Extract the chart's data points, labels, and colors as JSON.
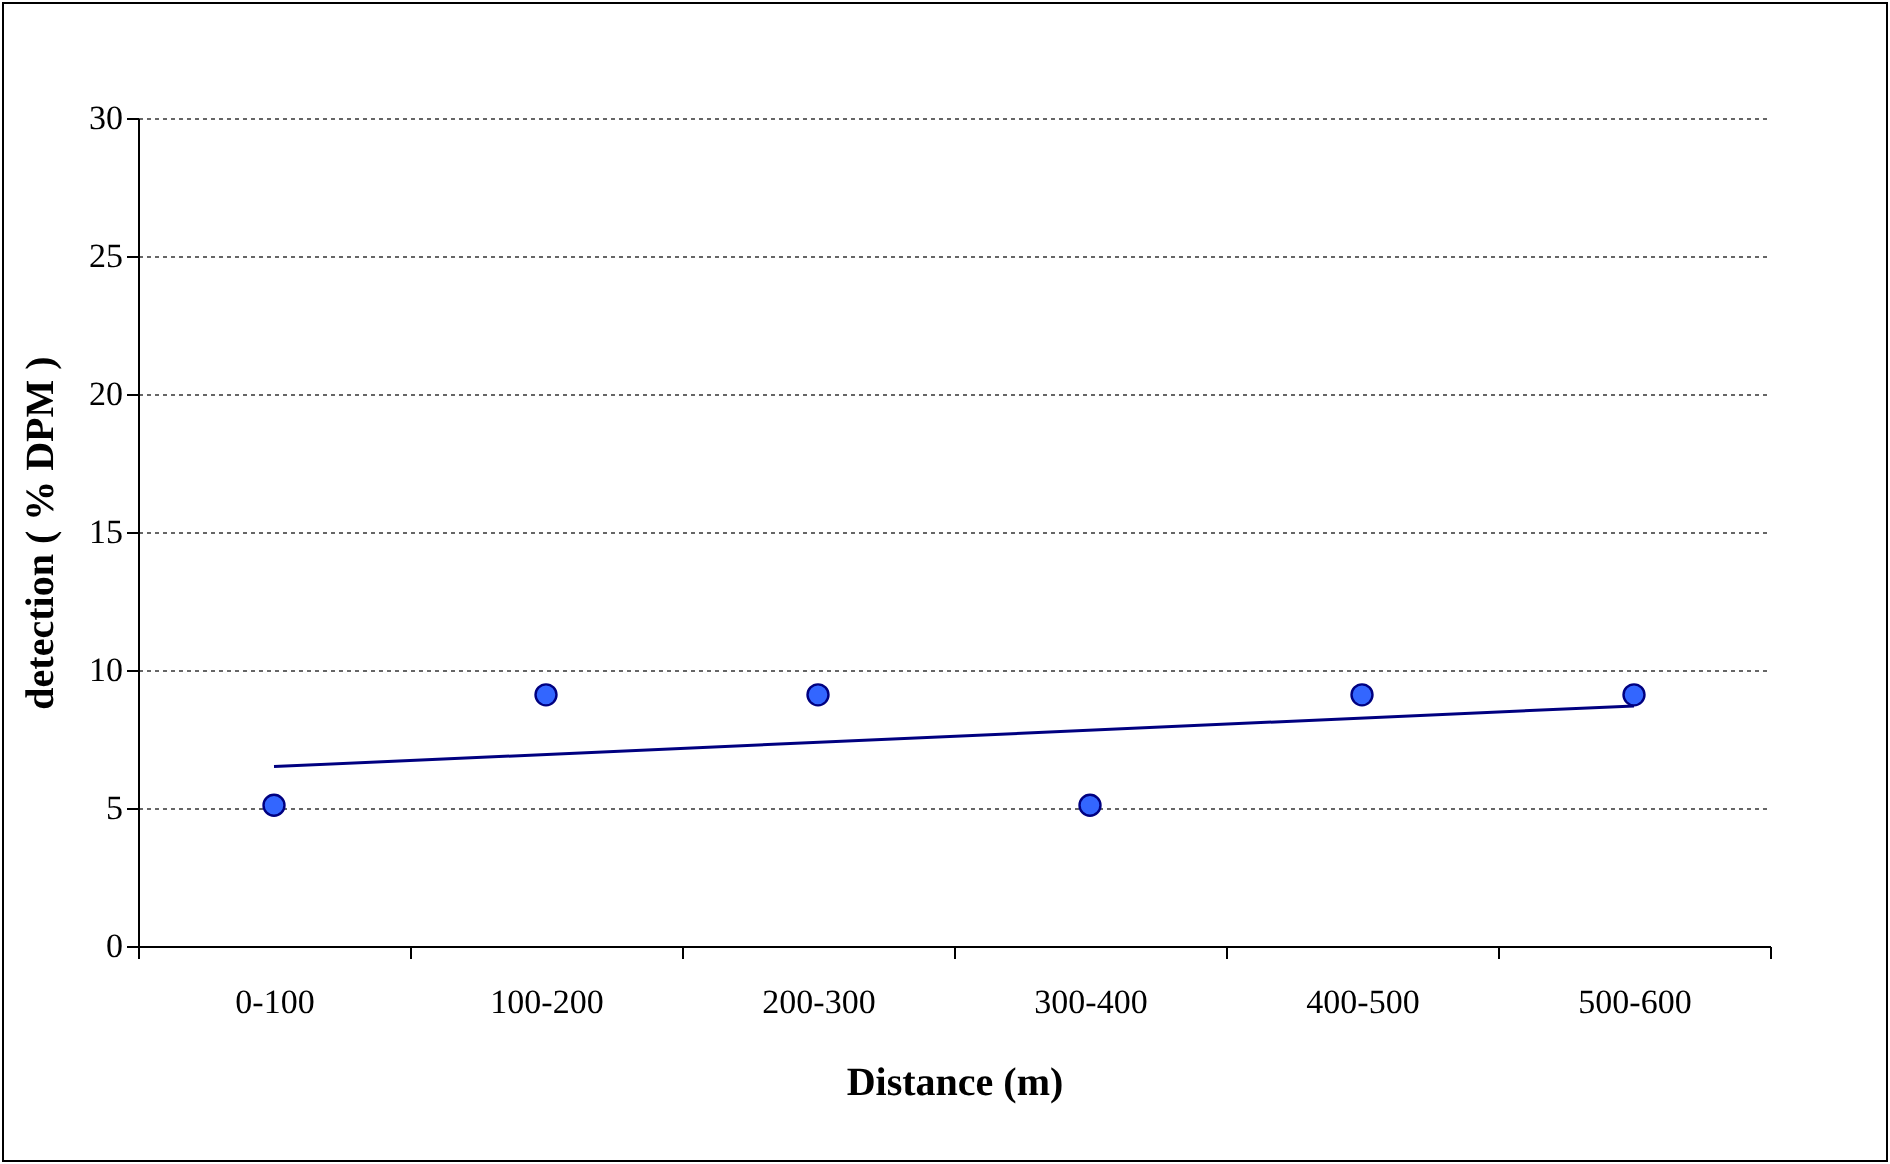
{
  "chart_data": {
    "type": "scatter",
    "xlabel": "Distance (m)",
    "ylabel": "detection ( % DPM )",
    "categories": [
      "0-100",
      "100-200",
      "200-300",
      "300-400",
      "400-500",
      "500-600"
    ],
    "series": [
      {
        "color": "#3366ff",
        "marker": "circle",
        "values": [
          5.1,
          9.1,
          9.1,
          5.1,
          9.1,
          9.1
        ]
      },
      {
        "type": "line",
        "color": "#000080",
        "marker": "none",
        "x": [
          "0-100",
          "500-600"
        ],
        "values": [
          6.5,
          8.7
        ]
      }
    ],
    "ylim": [
      0,
      30
    ],
    "yticks": [
      0,
      5,
      10,
      15,
      20,
      25,
      30
    ],
    "grid": "y"
  }
}
